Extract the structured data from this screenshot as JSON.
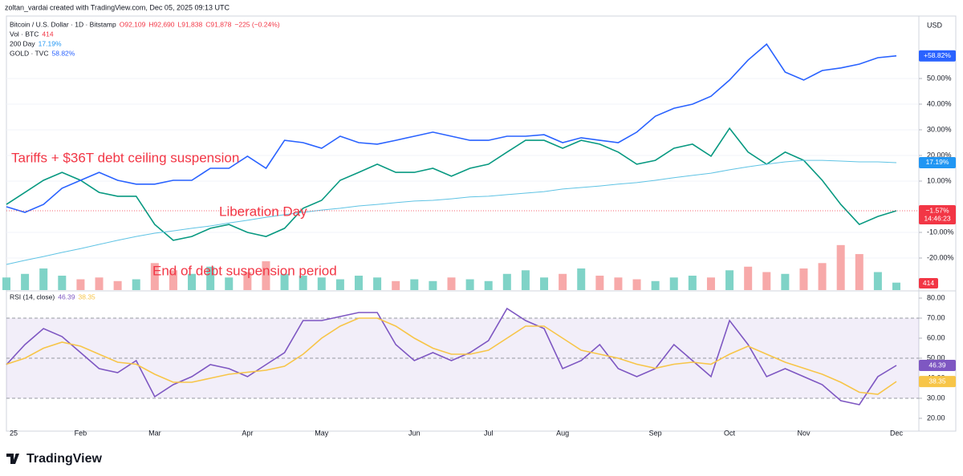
{
  "header": {
    "credit": "zoltan_vardai created with TradingView.com, Dec 05, 2025 09:13 UTC",
    "currency": "USD"
  },
  "chart_data": [
    {
      "type": "line",
      "categories": [
        "25",
        null,
        null,
        null,
        "Feb",
        null,
        null,
        null,
        "Mar",
        null,
        null,
        null,
        null,
        "Apr",
        null,
        null,
        null,
        "May",
        null,
        null,
        null,
        null,
        "Jun",
        null,
        null,
        null,
        "Jul",
        null,
        null,
        null,
        "Aug",
        null,
        null,
        null,
        null,
        "Sep",
        null,
        null,
        null,
        "Oct",
        null,
        null,
        null,
        "Nov",
        null,
        null,
        null,
        null,
        "Dec"
      ],
      "ylim": [
        -32.5,
        72.8
      ],
      "yticks": [
        {
          "value": -20,
          "label": "-20.00%"
        },
        {
          "value": -10,
          "label": "-10.00%"
        },
        {
          "value": 10,
          "label": "10.00%"
        },
        {
          "value": 20,
          "label": "20.00%"
        },
        {
          "value": 30,
          "label": "30.00%"
        },
        {
          "value": 40,
          "label": "40.00%"
        },
        {
          "value": 50,
          "label": "50.00%"
        }
      ],
      "y2lim": [
        0,
        15000
      ],
      "grid": true,
      "series": [
        {
          "name": "Bitcoin / U.S. Dollar · 1D · Bitstamp",
          "color": "#089981",
          "tag_color": "#f23645",
          "ohlc": [
            "O92,109",
            "H92,690",
            "L91,838",
            "C91,878"
          ],
          "change": "−225 (−0.24%)",
          "tag": "−1.57%",
          "countdown": "14:46:23",
          "values": [
            0.9,
            5.6,
            10.3,
            13.4,
            10.3,
            5.6,
            4.1,
            4.1,
            -6.9,
            -13.1,
            -11.6,
            -8.4,
            -6.9,
            -10.0,
            -11.6,
            -8.4,
            -0.6,
            2.5,
            10.3,
            13.4,
            16.6,
            13.4,
            13.4,
            15.0,
            11.9,
            15.0,
            16.6,
            21.3,
            25.9,
            25.9,
            22.8,
            25.9,
            24.4,
            21.3,
            16.6,
            18.1,
            22.8,
            24.4,
            19.7,
            30.6,
            21.3,
            16.6,
            21.3,
            18.1,
            10.3,
            0.9,
            -6.9,
            -3.8,
            -1.57
          ]
        },
        {
          "name": "200 Day",
          "color": "#5fc3e4",
          "legend_value": "17.19%",
          "tag": "17.19%",
          "values": [
            -22.5,
            -20.9,
            -19.4,
            -17.8,
            -16.3,
            -14.7,
            -13.1,
            -11.6,
            -10.3,
            -9.4,
            -8.4,
            -7.5,
            -6.3,
            -5.3,
            -4.1,
            -3.1,
            -2.2,
            -1.3,
            -0.6,
            0.3,
            0.9,
            1.6,
            2.2,
            2.5,
            3.1,
            3.8,
            4.1,
            4.7,
            5.3,
            5.9,
            6.9,
            7.5,
            8.1,
            8.8,
            9.4,
            10.3,
            11.3,
            12.2,
            13.1,
            14.4,
            15.6,
            16.6,
            17.5,
            18.1,
            18.1,
            17.8,
            17.5,
            17.5,
            17.19
          ]
        },
        {
          "name": "GOLD · TVC",
          "color": "#2962ff",
          "legend_value": "58.82%",
          "tag": "+58.82%",
          "values": [
            0,
            -2.2,
            0.9,
            7.2,
            10.3,
            13.4,
            10.3,
            8.8,
            8.8,
            10.3,
            10.3,
            15.0,
            15.0,
            19.7,
            15.0,
            25.9,
            25.0,
            22.8,
            27.5,
            25.0,
            24.4,
            25.9,
            27.5,
            29.1,
            27.5,
            25.9,
            25.9,
            27.5,
            27.5,
            28.1,
            25.0,
            26.9,
            25.9,
            25.0,
            29.1,
            35.3,
            38.4,
            40.0,
            43.1,
            49.4,
            57.2,
            63.4,
            52.5,
            49.4,
            53.1,
            54.1,
            55.6,
            58.1,
            58.82
          ]
        },
        {
          "name": "Vol · BTC",
          "type": "bar",
          "axis": "y2",
          "up_color": "#7fd3c7",
          "down_color": "#f7a9a9",
          "tag_color": "#f23645",
          "values": [
            700,
            900,
            1200,
            800,
            600,
            700,
            500,
            600,
            1500,
            1100,
            900,
            1300,
            700,
            1000,
            1600,
            900,
            800,
            700,
            600,
            800,
            700,
            500,
            600,
            500,
            700,
            600,
            500,
            900,
            1100,
            700,
            900,
            1200,
            800,
            700,
            600,
            500,
            700,
            800,
            700,
            1100,
            1300,
            1000,
            900,
            1200,
            1500,
            2500,
            2000,
            1000,
            414
          ]
        }
      ],
      "annotations": [
        "Tariffs + $36T debt ceiling suspension",
        "Liberation Day",
        "End of debt suspension period"
      ]
    },
    {
      "type": "line",
      "title": "RSI (14, close)",
      "ylim": [
        14.8,
        82.8
      ],
      "yticks": [
        {
          "value": 20,
          "label": "20.00"
        },
        {
          "value": 30,
          "label": "30.00"
        },
        {
          "value": 40,
          "label": "40.00"
        },
        {
          "value": 50,
          "label": "50.00"
        },
        {
          "value": 60,
          "label": "60.00"
        },
        {
          "value": 70,
          "label": "70.00"
        },
        {
          "value": 80,
          "label": "80.00"
        }
      ],
      "band": [
        30,
        70
      ],
      "midline": 50,
      "band_color": "#7e57c2",
      "series": [
        {
          "name": "RSI",
          "color": "#7e57c2",
          "values": [
            46.8,
            56.8,
            64.8,
            60.8,
            52.8,
            44.8,
            42.8,
            48.8,
            30.8,
            36.8,
            40.8,
            46.8,
            44.8,
            40.8,
            46.8,
            52.8,
            68.8,
            68.8,
            70.8,
            72.8,
            72.8,
            56.8,
            48.8,
            52.8,
            48.8,
            52.8,
            58.8,
            74.8,
            68.8,
            64.8,
            44.8,
            48.8,
            56.8,
            44.8,
            40.8,
            44.8,
            56.8,
            48.8,
            40.8,
            68.8,
            56.8,
            40.8,
            44.8,
            40.8,
            36.8,
            28.8,
            26.8,
            40.8,
            46.39
          ]
        },
        {
          "name": "RSI MA",
          "color": "#f7c548",
          "values": [
            47,
            50,
            55,
            58,
            56,
            52,
            48,
            47,
            42,
            38,
            38,
            40,
            42,
            43,
            44,
            46,
            52,
            60,
            66,
            70,
            70,
            66,
            60,
            55,
            52,
            52,
            54,
            60,
            66,
            66,
            60,
            54,
            52,
            50,
            47,
            45,
            47,
            48,
            47,
            52,
            56,
            52,
            48,
            45,
            42,
            38,
            33,
            32,
            38.35
          ]
        }
      ]
    }
  ],
  "footer": {
    "brand": "TradingView"
  }
}
